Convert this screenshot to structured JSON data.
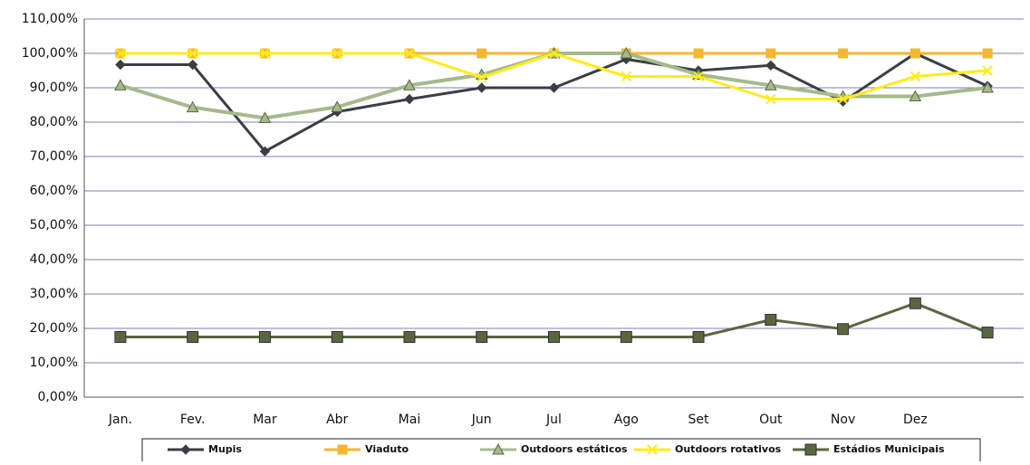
{
  "chart_data": {
    "type": "line",
    "categories": [
      "Jan.",
      "Fev.",
      "Mar",
      "Abr",
      "Mai",
      "Jun",
      "Jul",
      "Ago",
      "Set",
      "Out",
      "Nov",
      "Dez",
      null
    ],
    "series": [
      {
        "name": "Mupis",
        "color": "#3a3f44",
        "marker": "diamond",
        "values": [
          96.7,
          96.7,
          71.5,
          83,
          86.7,
          90,
          90,
          98.3,
          95,
          96.5,
          86,
          100,
          90.5
        ]
      },
      {
        "name": "Viaduto",
        "color": "#f5b72e",
        "marker": "square",
        "values": [
          100,
          100,
          100,
          100,
          100,
          100,
          100,
          100,
          100,
          100,
          100,
          100,
          100
        ]
      },
      {
        "name": "Outdoors estáticos",
        "color": "#a6b98c",
        "marker": "triangle",
        "values": [
          90.7,
          84.3,
          81.2,
          84.4,
          90.7,
          93.8,
          100,
          100,
          93.8,
          90.7,
          87.5,
          87.5,
          90
        ]
      },
      {
        "name": "Outdoors rotativos",
        "color": "#ffec1a",
        "marker": "x",
        "values": [
          100,
          100,
          100,
          100,
          100,
          93,
          100,
          93.3,
          93.3,
          86.7,
          86.7,
          93.3,
          95
        ]
      },
      {
        "name": "Estádios Municipais",
        "color": "#5a6640",
        "marker": "bigsquare",
        "values": [
          17.5,
          17.5,
          17.5,
          17.5,
          17.5,
          17.5,
          17.5,
          17.5,
          17.5,
          22.5,
          19.8,
          27.3,
          18.8
        ]
      }
    ],
    "ylim": [
      0,
      110
    ],
    "yticks": [
      {
        "value": 0,
        "label": "0,00%"
      },
      {
        "value": 10,
        "label": "10,00%"
      },
      {
        "value": 20,
        "label": "20,00%"
      },
      {
        "value": 30,
        "label": "30,00%"
      },
      {
        "value": 40,
        "label": "40,00%"
      },
      {
        "value": 50,
        "label": "50,00%"
      },
      {
        "value": 60,
        "label": "60,00%"
      },
      {
        "value": 70,
        "label": "70,00%"
      },
      {
        "value": 80,
        "label": "80,00%"
      },
      {
        "value": 90,
        "label": "90,00%"
      },
      {
        "value": 100,
        "label": "100,00%"
      },
      {
        "value": 110,
        "label": "110,00%"
      }
    ],
    "grid": true,
    "legend": "bottom"
  }
}
